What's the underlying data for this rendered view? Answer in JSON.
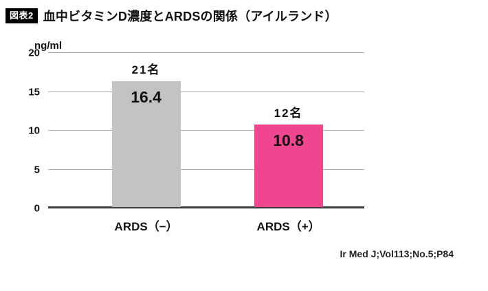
{
  "header": {
    "badge": "図表2",
    "title": "血中ビタミンD濃度とARDSの関係（アイルランド）"
  },
  "source": "Ir Med J;Vol113;No.5;P84",
  "colors": {
    "bar_ards_negative": "#c3c3c3",
    "bar_ards_positive": "#f0458f",
    "badge_background": "#000000",
    "gridline": "#aaaaaa",
    "baseline": "#3a3a3a"
  },
  "chart_data": {
    "type": "bar",
    "title": "血中ビタミンD濃度とARDSの関係（アイルランド）",
    "xlabel": "",
    "ylabel": "ng/ml",
    "ylim": [
      0,
      20
    ],
    "yticks": [
      0,
      5,
      10,
      15,
      20
    ],
    "grid": true,
    "legend": false,
    "categories": [
      "ARDS（−）",
      "ARDS（+）"
    ],
    "series": [
      {
        "label": "ARDS（−）",
        "value": 16.4,
        "count_label": "21名",
        "color": "#c3c3c3"
      },
      {
        "label": "ARDS（+）",
        "value": 10.8,
        "count_label": "12名",
        "color": "#f0458f"
      }
    ]
  }
}
